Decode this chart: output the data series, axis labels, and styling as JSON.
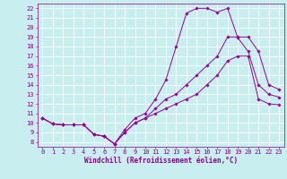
{
  "xlabel": "Windchill (Refroidissement éolien,°C)",
  "bg_color": "#c8eef0",
  "grid_color": "#ffffff",
  "line_color": "#990099",
  "tick_color": "#880088",
  "x_ticks": [
    0,
    1,
    2,
    3,
    4,
    5,
    6,
    7,
    8,
    9,
    10,
    11,
    12,
    13,
    14,
    15,
    16,
    17,
    18,
    19,
    20,
    21,
    22,
    23
  ],
  "y_ticks": [
    8,
    9,
    10,
    11,
    12,
    13,
    14,
    15,
    16,
    17,
    18,
    19,
    20,
    21,
    22
  ],
  "xlim": [
    -0.5,
    23.5
  ],
  "ylim": [
    7.5,
    22.5
  ],
  "curve1_x": [
    0,
    1,
    2,
    3,
    4,
    5,
    6,
    7,
    8,
    9,
    10,
    11,
    12,
    13,
    14,
    15,
    16,
    17,
    18,
    19,
    20,
    21,
    22,
    23
  ],
  "curve1_y": [
    10.5,
    9.9,
    9.8,
    9.8,
    9.8,
    8.8,
    8.6,
    7.8,
    9.3,
    10.5,
    11.0,
    12.5,
    14.5,
    18.0,
    21.5,
    22.0,
    22.0,
    21.6,
    22.0,
    18.9,
    17.5,
    14.0,
    13.0,
    12.7
  ],
  "curve2_x": [
    0,
    1,
    2,
    3,
    4,
    5,
    6,
    7,
    8,
    9,
    10,
    11,
    12,
    13,
    14,
    15,
    16,
    17,
    18,
    19,
    20,
    21,
    22,
    23
  ],
  "curve2_y": [
    10.5,
    9.9,
    9.8,
    9.8,
    9.8,
    8.8,
    8.6,
    7.8,
    9.0,
    10.0,
    10.5,
    11.5,
    12.5,
    13.0,
    14.0,
    15.0,
    16.0,
    17.0,
    19.0,
    19.0,
    19.0,
    17.5,
    14.0,
    13.5
  ],
  "curve3_x": [
    0,
    1,
    2,
    3,
    4,
    5,
    6,
    7,
    8,
    9,
    10,
    11,
    12,
    13,
    14,
    15,
    16,
    17,
    18,
    19,
    20,
    21,
    22,
    23
  ],
  "curve3_y": [
    10.5,
    9.9,
    9.8,
    9.8,
    9.8,
    8.8,
    8.6,
    7.8,
    9.0,
    10.0,
    10.5,
    11.0,
    11.5,
    12.0,
    12.5,
    13.0,
    14.0,
    15.0,
    16.5,
    17.0,
    17.0,
    12.5,
    12.0,
    11.9
  ],
  "tick_fontsize": 5.0,
  "xlabel_fontsize": 5.5,
  "lw": 0.7,
  "ms": 1.8
}
